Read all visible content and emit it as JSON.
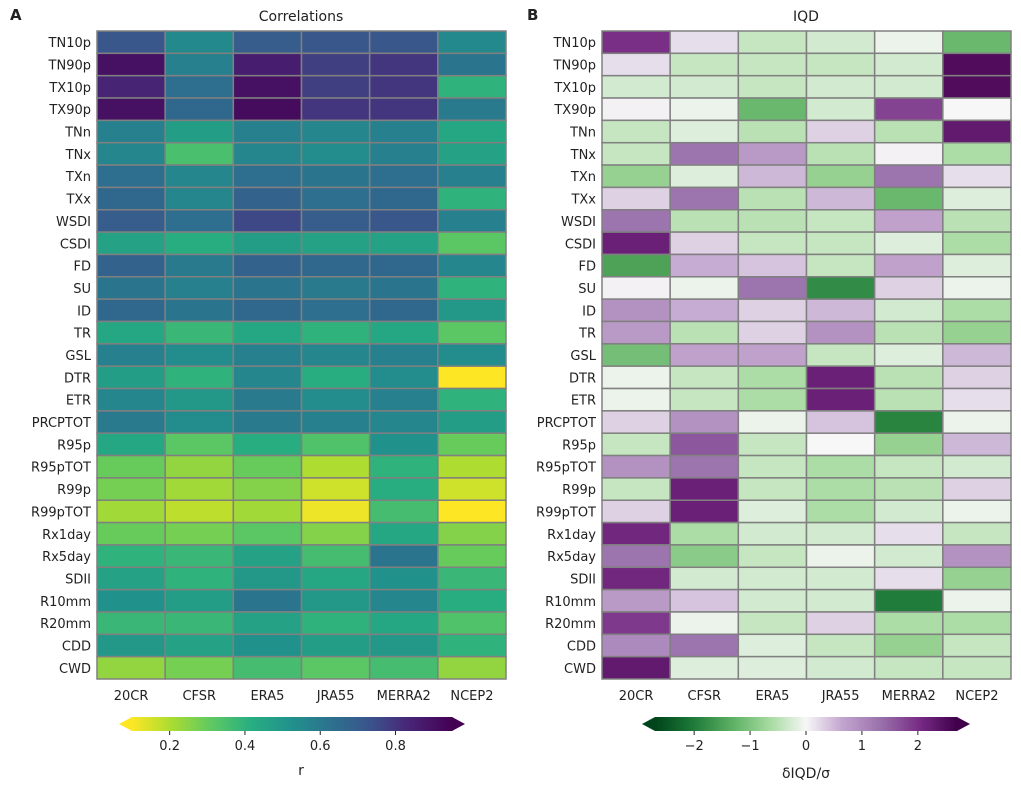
{
  "chart_data": [
    {
      "type": "heatmap",
      "panel_letter": "A",
      "title": "Correlations",
      "row_labels": [
        "TN10p",
        "TN90p",
        "TX10p",
        "TX90p",
        "TNn",
        "TNx",
        "TXn",
        "TXx",
        "WSDI",
        "CSDI",
        "FD",
        "SU",
        "ID",
        "TR",
        "GSL",
        "DTR",
        "ETR",
        "PRCPTOT",
        "R95p",
        "R95pTOT",
        "R99p",
        "R99pTOT",
        "Rx1day",
        "Rx5day",
        "SDII",
        "R10mm",
        "R20mm",
        "CDD",
        "CWD"
      ],
      "col_labels": [
        "20CR",
        "CFSR",
        "ERA5",
        "JRA55",
        "MERRA2",
        "NCEP2"
      ],
      "values": [
        [
          0.72,
          0.55,
          0.7,
          0.72,
          0.72,
          0.55
        ],
        [
          0.9,
          0.58,
          0.86,
          0.78,
          0.8,
          0.62
        ],
        [
          0.84,
          0.64,
          0.9,
          0.78,
          0.8,
          0.4
        ],
        [
          0.9,
          0.66,
          0.92,
          0.8,
          0.8,
          0.6
        ],
        [
          0.58,
          0.48,
          0.58,
          0.56,
          0.58,
          0.44
        ],
        [
          0.56,
          0.35,
          0.56,
          0.54,
          0.58,
          0.46
        ],
        [
          0.64,
          0.56,
          0.64,
          0.62,
          0.64,
          0.58
        ],
        [
          0.66,
          0.56,
          0.68,
          0.64,
          0.66,
          0.4
        ],
        [
          0.7,
          0.64,
          0.76,
          0.7,
          0.72,
          0.58
        ],
        [
          0.46,
          0.42,
          0.48,
          0.46,
          0.46,
          0.32
        ],
        [
          0.68,
          0.6,
          0.68,
          0.66,
          0.66,
          0.56
        ],
        [
          0.62,
          0.58,
          0.62,
          0.6,
          0.62,
          0.4
        ],
        [
          0.66,
          0.62,
          0.66,
          0.64,
          0.66,
          0.5
        ],
        [
          0.44,
          0.38,
          0.44,
          0.4,
          0.44,
          0.32
        ],
        [
          0.58,
          0.54,
          0.58,
          0.56,
          0.58,
          0.54
        ],
        [
          0.48,
          0.4,
          0.56,
          0.42,
          0.54,
          0.1
        ],
        [
          0.56,
          0.5,
          0.6,
          0.54,
          0.58,
          0.4
        ],
        [
          0.6,
          0.54,
          0.6,
          0.58,
          0.56,
          0.48
        ],
        [
          0.44,
          0.32,
          0.42,
          0.34,
          0.52,
          0.3
        ],
        [
          0.3,
          0.24,
          0.3,
          0.2,
          0.4,
          0.2
        ],
        [
          0.28,
          0.22,
          0.26,
          0.16,
          0.42,
          0.16
        ],
        [
          0.22,
          0.18,
          0.22,
          0.12,
          0.36,
          0.1
        ],
        [
          0.3,
          0.28,
          0.32,
          0.26,
          0.44,
          0.26
        ],
        [
          0.4,
          0.38,
          0.46,
          0.36,
          0.62,
          0.3
        ],
        [
          0.46,
          0.4,
          0.5,
          0.44,
          0.52,
          0.38
        ],
        [
          0.52,
          0.48,
          0.62,
          0.5,
          0.56,
          0.42
        ],
        [
          0.38,
          0.38,
          0.46,
          0.4,
          0.44,
          0.34
        ],
        [
          0.5,
          0.46,
          0.52,
          0.48,
          0.5,
          0.4
        ],
        [
          0.24,
          0.28,
          0.36,
          0.32,
          0.36,
          0.24
        ]
      ],
      "colorbar": {
        "colormap": "viridis_r",
        "vmin": 0.1,
        "vmax": 0.95,
        "ticks": [
          0.2,
          0.4,
          0.6,
          0.8
        ],
        "tick_labels": [
          "0.2",
          "0.4",
          "0.6",
          "0.8"
        ],
        "label": "r",
        "extend": "both"
      }
    },
    {
      "type": "heatmap",
      "panel_letter": "B",
      "title": "IQD",
      "row_labels": [
        "TN10p",
        "TN90p",
        "TX10p",
        "TX90p",
        "TNn",
        "TNx",
        "TXn",
        "TXx",
        "WSDI",
        "CSDI",
        "FD",
        "SU",
        "ID",
        "TR",
        "GSL",
        "DTR",
        "ETR",
        "PRCPTOT",
        "R95p",
        "R95pTOT",
        "R99p",
        "R99pTOT",
        "Rx1day",
        "Rx5day",
        "SDII",
        "R10mm",
        "R20mm",
        "CDD",
        "CWD"
      ],
      "col_labels": [
        "20CR",
        "CFSR",
        "ERA5",
        "JRA55",
        "MERRA2",
        "NCEP2"
      ],
      "values": [
        [
          2.0,
          0.2,
          -0.4,
          -0.3,
          -0.1,
          -1.2
        ],
        [
          0.2,
          -0.4,
          -0.4,
          -0.4,
          -0.3,
          2.5
        ],
        [
          -0.3,
          -0.3,
          -0.4,
          -0.3,
          -0.3,
          2.5
        ],
        [
          0.05,
          -0.1,
          -1.2,
          -0.3,
          1.8,
          0.0
        ],
        [
          -0.4,
          -0.2,
          -0.5,
          0.3,
          -0.5,
          2.3
        ],
        [
          -0.4,
          1.3,
          0.8,
          -0.5,
          0.05,
          -0.6
        ],
        [
          -0.8,
          -0.2,
          0.5,
          -0.8,
          1.3,
          0.2
        ],
        [
          0.3,
          1.3,
          -0.5,
          0.5,
          -1.2,
          -0.2
        ],
        [
          1.3,
          -0.5,
          -0.5,
          -0.4,
          0.7,
          -0.5
        ],
        [
          2.2,
          0.3,
          -0.4,
          -0.4,
          -0.2,
          -0.6
        ],
        [
          -1.5,
          0.6,
          0.4,
          -0.4,
          0.7,
          -0.2
        ],
        [
          0.05,
          -0.1,
          1.3,
          -1.8,
          0.3,
          -0.1
        ],
        [
          0.9,
          0.6,
          0.3,
          0.5,
          -0.3,
          -0.6
        ],
        [
          0.8,
          -0.5,
          0.3,
          0.9,
          -0.5,
          -0.8
        ],
        [
          -1.1,
          0.7,
          0.7,
          -0.4,
          -0.2,
          0.5
        ],
        [
          -0.1,
          -0.4,
          -0.6,
          2.2,
          -0.5,
          0.3
        ],
        [
          -0.1,
          -0.4,
          -0.6,
          2.2,
          -0.5,
          0.2
        ],
        [
          0.3,
          0.9,
          -0.1,
          0.4,
          -1.9,
          -0.1
        ],
        [
          -0.4,
          1.6,
          -0.4,
          0.0,
          -0.8,
          0.5
        ],
        [
          0.9,
          1.3,
          -0.4,
          -0.6,
          -0.4,
          -0.3
        ],
        [
          -0.4,
          2.2,
          -0.4,
          -0.6,
          -0.5,
          0.3
        ],
        [
          0.3,
          2.2,
          -0.2,
          -0.6,
          -0.3,
          -0.1
        ],
        [
          2.1,
          -0.6,
          -0.3,
          -0.3,
          0.2,
          -0.4
        ],
        [
          1.3,
          -0.9,
          -0.4,
          -0.1,
          -0.3,
          0.9
        ],
        [
          2.1,
          -0.3,
          -0.3,
          -0.3,
          0.2,
          -0.8
        ],
        [
          0.8,
          0.4,
          -0.3,
          -0.3,
          -2.0,
          -0.1
        ],
        [
          1.9,
          -0.1,
          -0.4,
          0.3,
          -0.6,
          -0.6
        ],
        [
          1.0,
          1.3,
          -0.2,
          -0.4,
          -0.8,
          -0.4
        ],
        [
          2.3,
          -0.2,
          -0.2,
          -0.3,
          -0.4,
          -0.4
        ]
      ],
      "colorbar": {
        "colormap": "PRGn_r",
        "vmin": -2.7,
        "vmax": 2.7,
        "ticks": [
          -2,
          -1,
          0,
          1,
          2
        ],
        "tick_labels": [
          "−2",
          "−1",
          "0",
          "1",
          "2"
        ],
        "label": "δIQD/σ",
        "extend": "both"
      }
    }
  ]
}
